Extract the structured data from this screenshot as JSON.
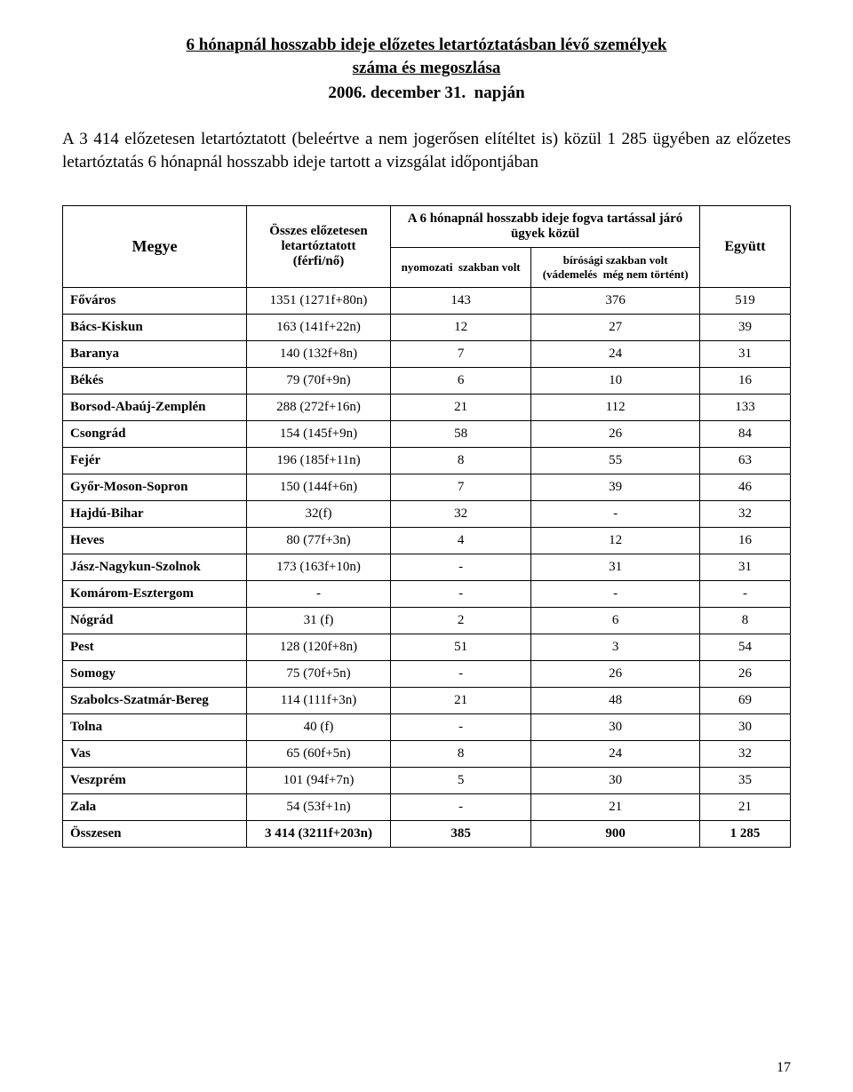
{
  "header": {
    "title_line1": "6 hónapnál hosszabb ideje előzetes letartóztatásban lévő személyek",
    "title_line2": "száma és megoszlása",
    "date_line": "2006. december 31.  napján"
  },
  "intro": "A 3 414 előzetesen letartóztatott (beleértve a nem jogerősen elítéltet is) közül 1 285 ügyében az előzetes letartóztatás 6 hónapnál hosszabb ideje tartott a vizsgálat időpontjában",
  "table": {
    "headers": {
      "megye": "Megye",
      "col2_line1": "Összes előzetesen",
      "col2_line2": "letartóztatott",
      "col2_line3": "(férfi/nő)",
      "span_title": "A 6 hónapnál hosszabb ideje fogva tartással járó",
      "ugyek": "ügyek közül",
      "sub_left": "nyomozati  szakban volt",
      "sub_right_line1": "bírósági szakban volt",
      "sub_right_line2": "(vádemelés  még nem történt)",
      "egyutt": "Együtt"
    },
    "rows": [
      {
        "name": "Főváros",
        "c2": "1351 (1271f+80n)",
        "c3": "143",
        "c4": "376",
        "c5": "519"
      },
      {
        "name": "Bács-Kiskun",
        "c2": "163 (141f+22n)",
        "c3": "12",
        "c4": "27",
        "c5": "39"
      },
      {
        "name": "Baranya",
        "c2": "140 (132f+8n)",
        "c3": "7",
        "c4": "24",
        "c5": "31"
      },
      {
        "name": "Békés",
        "c2": "79 (70f+9n)",
        "c3": "6",
        "c4": "10",
        "c5": "16"
      },
      {
        "name": "Borsod-Abaúj-Zemplén",
        "c2": "288 (272f+16n)",
        "c3": "21",
        "c4": "112",
        "c5": "133"
      },
      {
        "name": "Csongrád",
        "c2": "154 (145f+9n)",
        "c3": "58",
        "c4": "26",
        "c5": "84"
      },
      {
        "name": "Fejér",
        "c2": "196 (185f+11n)",
        "c3": "8",
        "c4": "55",
        "c5": "63"
      },
      {
        "name": "Győr-Moson-Sopron",
        "c2": "150 (144f+6n)",
        "c3": "7",
        "c4": "39",
        "c5": "46"
      },
      {
        "name": "Hajdú-Bihar",
        "c2": "32(f)",
        "c3": "32",
        "c4": "-",
        "c5": "32"
      },
      {
        "name": "Heves",
        "c2": "80 (77f+3n)",
        "c3": "4",
        "c4": "12",
        "c5": "16"
      },
      {
        "name": "Jász-Nagykun-Szolnok",
        "c2": "173 (163f+10n)",
        "c3": "-",
        "c4": "31",
        "c5": "31"
      },
      {
        "name": "Komárom-Esztergom",
        "c2": "-",
        "c3": "-",
        "c4": "-",
        "c5": "-"
      },
      {
        "name": "Nógrád",
        "c2": "31 (f)",
        "c3": "2",
        "c4": "6",
        "c5": "8"
      },
      {
        "name": "Pest",
        "c2": "128 (120f+8n)",
        "c3": "51",
        "c4": "3",
        "c5": "54"
      },
      {
        "name": "Somogy",
        "c2": "75 (70f+5n)",
        "c3": "-",
        "c4": "26",
        "c5": "26"
      },
      {
        "name": "Szabolcs-Szatmár-Bereg",
        "c2": "114 (111f+3n)",
        "c3": "21",
        "c4": "48",
        "c5": "69"
      },
      {
        "name": "Tolna",
        "c2": "40 (f)",
        "c3": "-",
        "c4": "30",
        "c5": "30"
      },
      {
        "name": "Vas",
        "c2": "65 (60f+5n)",
        "c3": "8",
        "c4": "24",
        "c5": "32"
      },
      {
        "name": "Veszprém",
        "c2": "101 (94f+7n)",
        "c3": "5",
        "c4": "30",
        "c5": "35"
      },
      {
        "name": "Zala",
        "c2": "54 (53f+1n)",
        "c3": "-",
        "c4": "21",
        "c5": "21"
      }
    ],
    "total": {
      "name": "Összesen",
      "c2": "3 414 (3211f+203n)",
      "c3": "385",
      "c4": "900",
      "c5": "1 285"
    }
  },
  "page_number": "17"
}
